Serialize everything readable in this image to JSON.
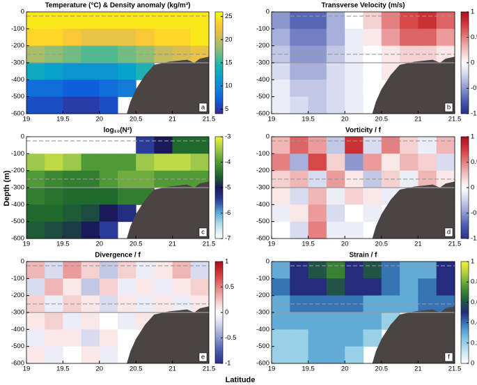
{
  "axis_labels": {
    "x": "Latitude",
    "y": "Depth (m)"
  },
  "chart_data": [
    {
      "type": "heatmap",
      "title": "Temperature (°C) & Density anomaly (kg/m³)",
      "panel_label": "a",
      "colormap": "parula",
      "x": [
        19.125,
        19.375,
        19.625,
        19.875,
        20.125,
        20.375,
        20.625,
        20.875,
        21.125,
        21.375
      ],
      "y": [
        -50,
        -150,
        -250,
        -350,
        -450,
        -550
      ],
      "values": [
        [
          25,
          25,
          25,
          25,
          25,
          25,
          25,
          25,
          25,
          25
        ],
        [
          24,
          24,
          23,
          22,
          22,
          22,
          23,
          24,
          24,
          25
        ],
        [
          19,
          18,
          17,
          16,
          16,
          17,
          18,
          20,
          21,
          22
        ],
        [
          13,
          12,
          11,
          11,
          11,
          12,
          14,
          null,
          null,
          null
        ],
        [
          8,
          8,
          7,
          7,
          8,
          9,
          null,
          null,
          null,
          null
        ],
        [
          6,
          6,
          5,
          5,
          6,
          null,
          null,
          null,
          null,
          null
        ]
      ],
      "xlim": [
        19,
        21.5
      ],
      "xticks": [
        19,
        19.5,
        20,
        20.5,
        21,
        21.5
      ],
      "ylim": [
        -600,
        0
      ],
      "yticks": [
        0,
        -100,
        -200,
        -300,
        -400,
        -500,
        -600
      ],
      "clim": [
        4,
        26
      ],
      "cticks": [
        5,
        10,
        15,
        20,
        25
      ],
      "dashed_lines": [
        -25,
        -250
      ],
      "solid_lines": [
        -300
      ]
    },
    {
      "type": "heatmap",
      "title": "Transverse Velocity (m/s)",
      "panel_label": "b",
      "colormap": "bwr",
      "x": [
        19.125,
        19.375,
        19.625,
        19.875,
        20.125,
        20.375,
        20.625,
        20.875,
        21.125,
        21.375
      ],
      "y": [
        -50,
        -150,
        -250,
        -350,
        -450,
        -550
      ],
      "values": [
        [
          -0.5,
          -0.7,
          -0.7,
          -0.4,
          0,
          0.2,
          0.5,
          0.7,
          0.8,
          0.6
        ],
        [
          -0.4,
          -0.6,
          -0.6,
          -0.4,
          -0.1,
          0.1,
          0.4,
          0.6,
          0.6,
          0.4
        ],
        [
          -0.3,
          -0.5,
          -0.5,
          -0.3,
          -0.1,
          0,
          0.1,
          0.2,
          0.2,
          0.1
        ],
        [
          -0.2,
          -0.4,
          -0.4,
          -0.2,
          -0.1,
          0,
          0.1,
          null,
          null,
          null
        ],
        [
          -0.1,
          -0.3,
          -0.3,
          -0.2,
          -0.1,
          0,
          null,
          null,
          null,
          null
        ],
        [
          -0.1,
          -0.2,
          -0.3,
          -0.2,
          -0.1,
          null,
          null,
          null,
          null,
          null
        ]
      ],
      "xlim": [
        19,
        21.5
      ],
      "xticks": [
        19,
        19.5,
        20,
        20.5,
        21,
        21.5
      ],
      "ylim": [
        -600,
        0
      ],
      "yticks": [
        0,
        -100,
        -200,
        -300,
        -400,
        -500,
        -600
      ],
      "clim": [
        -1,
        1
      ],
      "cticks": [
        -1,
        -0.5,
        0,
        0.5,
        1
      ],
      "dashed_lines": [
        -25,
        -250
      ],
      "solid_lines": [
        -300
      ]
    },
    {
      "type": "heatmap",
      "title": "log₁₀(N²)",
      "panel_label": "c",
      "colormap": "n2",
      "x": [
        19.125,
        19.375,
        19.625,
        19.875,
        20.125,
        20.375,
        20.625,
        20.875,
        21.125,
        21.375
      ],
      "y": [
        -50,
        -150,
        -250,
        -350,
        -450,
        -550
      ],
      "values": [
        [
          null,
          null,
          null,
          null,
          null,
          null,
          -5.5,
          -5,
          -4.5,
          -4.5
        ],
        [
          -3.5,
          -3.3,
          -3.5,
          -4,
          -4,
          -4,
          -3.5,
          -3.3,
          -3.3,
          -3.5
        ],
        [
          -4,
          -4.2,
          -4.3,
          -4.3,
          -4,
          -3.8,
          -3.8,
          -4,
          -4,
          -4
        ],
        [
          -4.3,
          -4.4,
          -4.5,
          -4.5,
          -4.5,
          -4.3,
          -4.3,
          null,
          null,
          null
        ],
        [
          -4.5,
          -4.5,
          -4.6,
          -4.7,
          -5,
          -5.3,
          null,
          null,
          null,
          null
        ],
        [
          -4.6,
          -4.7,
          -4.8,
          -5,
          -5.5,
          null,
          null,
          null,
          null,
          null
        ]
      ],
      "xlim": [
        19,
        21.5
      ],
      "xticks": [
        19,
        19.5,
        20,
        20.5,
        21,
        21.5
      ],
      "ylim": [
        -600,
        0
      ],
      "yticks": [
        0,
        -100,
        -200,
        -300,
        -400,
        -500,
        -600
      ],
      "clim": [
        -7,
        -3
      ],
      "cticks": [
        -7,
        -6,
        -5,
        -4,
        -3
      ],
      "dashed_lines": [
        -25,
        -250
      ],
      "solid_lines": [
        -300
      ]
    },
    {
      "type": "heatmap",
      "title": "Vorticity / f",
      "panel_label": "d",
      "colormap": "bwr",
      "x": [
        19.125,
        19.375,
        19.625,
        19.875,
        20.125,
        20.375,
        20.625,
        20.875,
        21.125,
        21.375
      ],
      "y": [
        -50,
        -150,
        -250,
        -350,
        -450,
        -550
      ],
      "values": [
        [
          0.3,
          0.6,
          0.4,
          -0.3,
          0.8,
          -0.2,
          0.5,
          0.2,
          -0.1,
          0.3
        ],
        [
          0.5,
          -0.4,
          0.7,
          0.2,
          -0.5,
          0.4,
          0.1,
          0.3,
          0.2,
          -0.2
        ],
        [
          0.2,
          0.3,
          -0.2,
          0.4,
          0.1,
          -0.3,
          0.2,
          -0.1,
          0.3,
          0.1
        ],
        [
          0.1,
          -0.2,
          0.3,
          -0.1,
          0.2,
          0.1,
          -0.1,
          null,
          null,
          null
        ],
        [
          -0.1,
          0.1,
          0.4,
          -0.2,
          0,
          -0.1,
          null,
          null,
          null,
          null
        ],
        [
          0,
          -0.2,
          0.5,
          -0.1,
          -0.1,
          null,
          null,
          null,
          null,
          null
        ]
      ],
      "xlim": [
        19,
        21.5
      ],
      "xticks": [
        19,
        19.5,
        20,
        20.5,
        21,
        21.5
      ],
      "ylim": [
        -600,
        0
      ],
      "yticks": [
        0,
        -100,
        -200,
        -300,
        -400,
        -500,
        -600
      ],
      "clim": [
        -1,
        1
      ],
      "cticks": [
        -1,
        -0.5,
        0,
        0.5,
        1
      ],
      "dashed_lines": [
        -25,
        -250
      ],
      "solid_lines": [
        -300
      ]
    },
    {
      "type": "heatmap",
      "title": "Divergence / f",
      "panel_label": "e",
      "colormap": "bwr",
      "x": [
        19.125,
        19.375,
        19.625,
        19.875,
        20.125,
        20.375,
        20.625,
        20.875,
        21.125,
        21.375
      ],
      "y": [
        -50,
        -150,
        -250,
        -350,
        -450,
        -550
      ],
      "values": [
        [
          0.3,
          -0.2,
          0.4,
          0.2,
          -0.3,
          0.2,
          -0.1,
          0.1,
          0.3,
          -0.2
        ],
        [
          -0.2,
          0.3,
          0.1,
          -0.3,
          0.2,
          -0.1,
          0.1,
          -0.1,
          0.1,
          0.2
        ],
        [
          0.2,
          -0.1,
          0.2,
          0.1,
          -0.2,
          0.1,
          -0.1,
          0.1,
          -0.1,
          0.1
        ],
        [
          0.1,
          0.2,
          -0.1,
          0.1,
          0,
          -0.1,
          0.1,
          null,
          null,
          null
        ],
        [
          -0.1,
          0.1,
          0.1,
          -0.2,
          0.1,
          0,
          null,
          null,
          null,
          null
        ],
        [
          0.1,
          -0.1,
          0,
          0.1,
          -0.1,
          null,
          null,
          null,
          null,
          null
        ]
      ],
      "xlim": [
        19,
        21.5
      ],
      "xticks": [
        19,
        19.5,
        20,
        20.5,
        21,
        21.5
      ],
      "ylim": [
        -600,
        0
      ],
      "yticks": [
        0,
        -100,
        -200,
        -300,
        -400,
        -500,
        -600
      ],
      "clim": [
        -1,
        1
      ],
      "cticks": [
        -1,
        -0.5,
        0,
        0.5,
        1
      ],
      "dashed_lines": [
        -25,
        -250
      ],
      "solid_lines": [
        -300
      ]
    },
    {
      "type": "heatmap",
      "title": "Strain / f",
      "panel_label": "f",
      "colormap": "strain",
      "x": [
        19.125,
        19.375,
        19.625,
        19.875,
        20.125,
        20.375,
        20.625,
        20.875,
        21.125,
        21.375
      ],
      "y": [
        -50,
        -150,
        -250,
        -350,
        -450,
        -550
      ],
      "values": [
        [
          0.3,
          0.5,
          0.6,
          0.7,
          0.5,
          0.6,
          0.4,
          0.3,
          0.3,
          0.5
        ],
        [
          0.4,
          0.5,
          0.5,
          0.6,
          0.5,
          0.5,
          0.4,
          0.3,
          0.4,
          0.5
        ],
        [
          0.3,
          0.4,
          0.4,
          0.4,
          0.4,
          0.3,
          0.3,
          0.3,
          0.4,
          0.4
        ],
        [
          0.3,
          0.3,
          0.3,
          0.3,
          0.3,
          0.3,
          0.2,
          null,
          null,
          null
        ],
        [
          0.2,
          0.2,
          0.3,
          0.3,
          0.3,
          0.2,
          null,
          null,
          null,
          null
        ],
        [
          0.2,
          0.2,
          0.3,
          0.3,
          0.2,
          null,
          null,
          null,
          null,
          null
        ]
      ],
      "xlim": [
        19,
        21.5
      ],
      "xticks": [
        19,
        19.5,
        20,
        20.5,
        21,
        21.5
      ],
      "ylim": [
        -600,
        0
      ],
      "yticks": [
        0,
        -100,
        -200,
        -300,
        -400,
        -500,
        -600
      ],
      "clim": [
        0,
        1
      ],
      "cticks": [
        0,
        0.2,
        0.4,
        0.6,
        0.8,
        1
      ],
      "dashed_lines": [
        -25,
        -250
      ],
      "solid_lines": [
        -300
      ]
    }
  ]
}
